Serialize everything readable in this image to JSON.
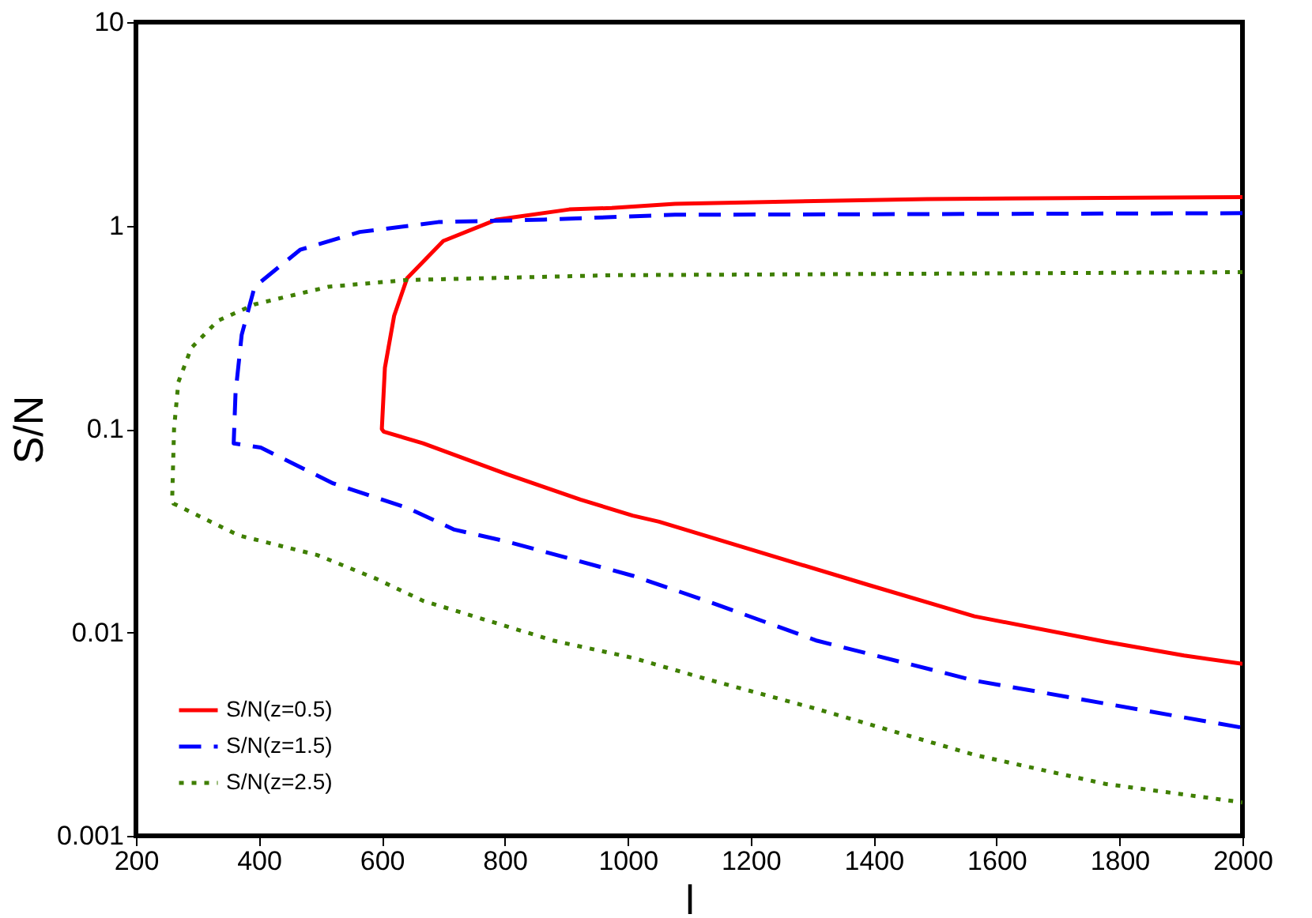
{
  "chart_data": {
    "type": "line",
    "xlabel": "l",
    "ylabel": "S/N",
    "log": "y",
    "grid": false,
    "legend": "bottom left",
    "xlim": [
      200,
      2000
    ],
    "xticks": [
      200,
      400,
      600,
      800,
      1000,
      1200,
      1400,
      1600,
      1800,
      2000
    ],
    "ylim": [
      0.001,
      10
    ],
    "yticks": [
      0.001,
      0.01,
      0.1,
      1,
      10
    ],
    "series": [
      {
        "name": "S/N(z=0.5)",
        "color": "#ff0000",
        "line_style": "solid",
        "x": [
          2000,
          1487,
          1077,
          974,
          905,
          787,
          700,
          641,
          620,
          605,
          600,
          603,
          667,
          803,
          923,
          1008,
          1051,
          1205,
          1392,
          1564,
          1777,
          1905,
          2000
        ],
        "values": [
          1.38,
          1.35,
          1.28,
          1.22,
          1.2,
          1.07,
          0.84,
          0.55,
          0.36,
          0.2,
          0.1,
          0.097,
          0.085,
          0.06,
          0.045,
          0.0375,
          0.035,
          0.0253,
          0.0171,
          0.012,
          0.009,
          0.0077,
          0.007
        ]
      },
      {
        "name": "S/N(z=1.5)",
        "color": "#0000ff",
        "line_style": "dashed",
        "x": [
          2000,
          1077,
          864,
          692,
          564,
          467,
          393,
          372,
          362,
          359,
          359,
          403,
          521,
          641,
          718,
          803,
          1008,
          1128,
          1308,
          1564,
          2000
        ],
        "values": [
          1.15,
          1.13,
          1.07,
          1.04,
          0.93,
          0.76,
          0.5,
          0.29,
          0.15,
          0.085,
          0.085,
          0.081,
          0.054,
          0.041,
          0.032,
          0.028,
          0.019,
          0.0143,
          0.0091,
          0.0058,
          0.0034
        ]
      },
      {
        "name": "S/N(z=2.5)",
        "color": "#3f7f00",
        "line_style": "dotted",
        "x": [
          2000,
          974,
          641,
          513,
          393,
          333,
          290,
          269,
          262,
          259,
          261,
          367,
          495,
          590,
          667,
          880,
          1008,
          1128,
          1308,
          1564,
          1777,
          2000
        ],
        "values": [
          0.59,
          0.57,
          0.54,
          0.5,
          0.41,
          0.34,
          0.25,
          0.17,
          0.1,
          0.046,
          0.043,
          0.03,
          0.024,
          0.0184,
          0.0143,
          0.0091,
          0.0075,
          0.0059,
          0.0042,
          0.0025,
          0.0018,
          0.00146
        ]
      }
    ]
  }
}
